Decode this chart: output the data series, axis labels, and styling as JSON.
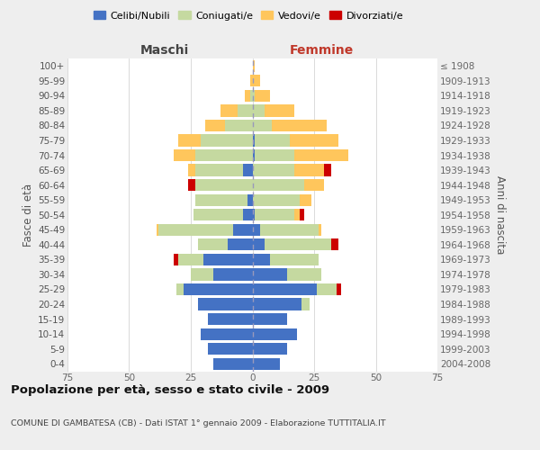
{
  "age_groups": [
    "100+",
    "95-99",
    "90-94",
    "85-89",
    "80-84",
    "75-79",
    "70-74",
    "65-69",
    "60-64",
    "55-59",
    "50-54",
    "45-49",
    "40-44",
    "35-39",
    "30-34",
    "25-29",
    "20-24",
    "15-19",
    "10-14",
    "5-9",
    "0-4"
  ],
  "birth_years": [
    "≤ 1908",
    "1909-1913",
    "1914-1918",
    "1919-1923",
    "1924-1928",
    "1929-1933",
    "1934-1938",
    "1939-1943",
    "1944-1948",
    "1949-1953",
    "1954-1958",
    "1959-1963",
    "1964-1968",
    "1969-1973",
    "1974-1978",
    "1979-1983",
    "1984-1988",
    "1989-1993",
    "1994-1998",
    "1999-2003",
    "2004-2008"
  ],
  "males": {
    "celibi": [
      0,
      0,
      0,
      0,
      0,
      0,
      0,
      4,
      0,
      2,
      4,
      8,
      10,
      20,
      16,
      28,
      22,
      18,
      21,
      18,
      16
    ],
    "coniugati": [
      0,
      0,
      1,
      6,
      11,
      21,
      23,
      19,
      23,
      21,
      20,
      30,
      12,
      10,
      9,
      3,
      0,
      0,
      0,
      0,
      0
    ],
    "vedovi": [
      0,
      1,
      2,
      7,
      8,
      9,
      9,
      3,
      0,
      0,
      0,
      1,
      0,
      0,
      0,
      0,
      0,
      0,
      0,
      0,
      0
    ],
    "divorziati": [
      0,
      0,
      0,
      0,
      0,
      0,
      0,
      0,
      3,
      0,
      0,
      0,
      0,
      2,
      0,
      0,
      0,
      0,
      0,
      0,
      0
    ]
  },
  "females": {
    "nubili": [
      0,
      0,
      0,
      0,
      0,
      1,
      1,
      0,
      0,
      0,
      1,
      3,
      5,
      7,
      14,
      26,
      20,
      14,
      18,
      14,
      11
    ],
    "coniugate": [
      0,
      0,
      1,
      5,
      8,
      14,
      16,
      17,
      21,
      19,
      16,
      24,
      27,
      20,
      14,
      8,
      3,
      0,
      0,
      0,
      0
    ],
    "vedove": [
      1,
      3,
      6,
      12,
      22,
      20,
      22,
      12,
      8,
      5,
      2,
      1,
      0,
      0,
      0,
      0,
      0,
      0,
      0,
      0,
      0
    ],
    "divorziate": [
      0,
      0,
      0,
      0,
      0,
      0,
      0,
      3,
      0,
      0,
      2,
      0,
      3,
      0,
      0,
      2,
      0,
      0,
      0,
      0,
      0
    ]
  },
  "colors": {
    "celibi": "#4472c4",
    "coniugati": "#c5d9a0",
    "vedovi": "#ffc65c",
    "divorziati": "#cc0000"
  },
  "xlim": 75,
  "title": "Popolazione per età, sesso e stato civile - 2009",
  "subtitle": "COMUNE DI GAMBATESA (CB) - Dati ISTAT 1° gennaio 2009 - Elaborazione TUTTITALIA.IT",
  "ylabel_left": "Fasce di età",
  "ylabel_right": "Anni di nascita",
  "xlabel_left": "Maschi",
  "xlabel_right": "Femmine",
  "bg_color": "#eeeeee",
  "plot_bg": "#ffffff",
  "grid_color": "#cccccc"
}
